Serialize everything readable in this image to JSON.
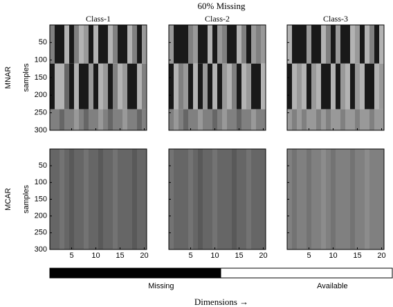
{
  "chart_data": {
    "type": "heatmap",
    "title": "60% Missing",
    "xlabel": "Dimensions →",
    "ylabel": "samples",
    "xlim": [
      0.5,
      20.5
    ],
    "xticks": [
      5,
      10,
      15,
      20
    ],
    "ylim": [
      0,
      300
    ],
    "yticks": [
      50,
      100,
      150,
      200,
      250,
      300
    ],
    "colorbar": {
      "labels": [
        "Missing",
        "Available"
      ],
      "colors": [
        "#000000",
        "#ffffff"
      ]
    },
    "rows": [
      {
        "label": "MNAR",
        "panels": [
          {
            "title": "Class-1",
            "row_edges": [
              0,
              110,
              240,
              300
            ],
            "missing": [
              [
                0.5,
                0.9,
                0.9,
                0.3,
                0.9,
                0.5,
                0.3,
                0.4,
                0.9,
                0.3,
                0.9,
                0.9,
                0.3,
                0.5,
                0.9,
                0.9,
                0.3,
                0.5,
                0.9,
                0.4
              ],
              [
                0.9,
                0.3,
                0.3,
                0.6,
                0.9,
                0.3,
                0.9,
                0.9,
                0.4,
                0.9,
                0.3,
                0.4,
                0.9,
                0.5,
                0.3,
                0.4,
                0.9,
                0.9,
                0.3,
                0.5
              ],
              [
                0.5,
                0.5,
                0.6,
                0.5,
                0.5,
                0.4,
                0.5,
                0.6,
                0.5,
                0.5,
                0.4,
                0.5,
                0.6,
                0.5,
                0.5,
                0.4,
                0.5,
                0.5,
                0.6,
                0.5
              ]
            ]
          },
          {
            "title": "Class-2",
            "row_edges": [
              0,
              110,
              240,
              300
            ],
            "missing": [
              [
                0.4,
                0.9,
                0.9,
                0.9,
                0.5,
                0.4,
                0.9,
                0.9,
                0.3,
                0.9,
                0.4,
                0.5,
                0.9,
                0.9,
                0.3,
                0.5,
                0.9,
                0.4,
                0.5,
                0.4
              ],
              [
                0.9,
                0.3,
                0.5,
                0.4,
                0.9,
                0.3,
                0.9,
                0.4,
                0.9,
                0.3,
                0.9,
                0.4,
                0.3,
                0.5,
                0.9,
                0.3,
                0.4,
                0.9,
                0.9,
                0.3
              ],
              [
                0.5,
                0.4,
                0.5,
                0.6,
                0.5,
                0.5,
                0.4,
                0.5,
                0.5,
                0.6,
                0.5,
                0.4,
                0.5,
                0.5,
                0.6,
                0.5,
                0.5,
                0.4,
                0.5,
                0.5
              ]
            ]
          },
          {
            "title": "Class-3",
            "row_edges": [
              0,
              110,
              240,
              300
            ],
            "missing": [
              [
                0.3,
                0.9,
                0.9,
                0.9,
                0.4,
                0.9,
                0.9,
                0.3,
                0.5,
                0.9,
                0.4,
                0.9,
                0.9,
                0.3,
                0.4,
                0.9,
                0.3,
                0.5,
                0.9,
                0.3
              ],
              [
                0.9,
                0.3,
                0.4,
                0.3,
                0.9,
                0.4,
                0.3,
                0.9,
                0.9,
                0.3,
                0.9,
                0.4,
                0.3,
                0.9,
                0.4,
                0.3,
                0.9,
                0.9,
                0.3,
                0.4
              ],
              [
                0.4,
                0.5,
                0.4,
                0.5,
                0.4,
                0.4,
                0.5,
                0.4,
                0.5,
                0.4,
                0.4,
                0.5,
                0.4,
                0.4,
                0.5,
                0.4,
                0.4,
                0.5,
                0.4,
                0.4
              ]
            ]
          }
        ]
      },
      {
        "label": "MCAR",
        "panels": [
          {
            "row_edges": [
              0,
              300
            ],
            "missing": [
              [
                0.6,
                0.6,
                0.55,
                0.6,
                0.65,
                0.6,
                0.6,
                0.55,
                0.6,
                0.6,
                0.65,
                0.6,
                0.6,
                0.55,
                0.6,
                0.6,
                0.6,
                0.65,
                0.6,
                0.6
              ]
            ]
          },
          {
            "row_edges": [
              0,
              300
            ],
            "missing": [
              [
                0.55,
                0.6,
                0.6,
                0.6,
                0.55,
                0.6,
                0.65,
                0.6,
                0.6,
                0.55,
                0.6,
                0.6,
                0.6,
                0.65,
                0.6,
                0.6,
                0.55,
                0.6,
                0.6,
                0.6
              ]
            ]
          },
          {
            "row_edges": [
              0,
              300
            ],
            "missing": [
              [
                0.5,
                0.55,
                0.5,
                0.5,
                0.55,
                0.5,
                0.5,
                0.45,
                0.5,
                0.55,
                0.5,
                0.5,
                0.5,
                0.55,
                0.5,
                0.5,
                0.45,
                0.5,
                0.5,
                0.5
              ]
            ]
          }
        ]
      }
    ]
  }
}
